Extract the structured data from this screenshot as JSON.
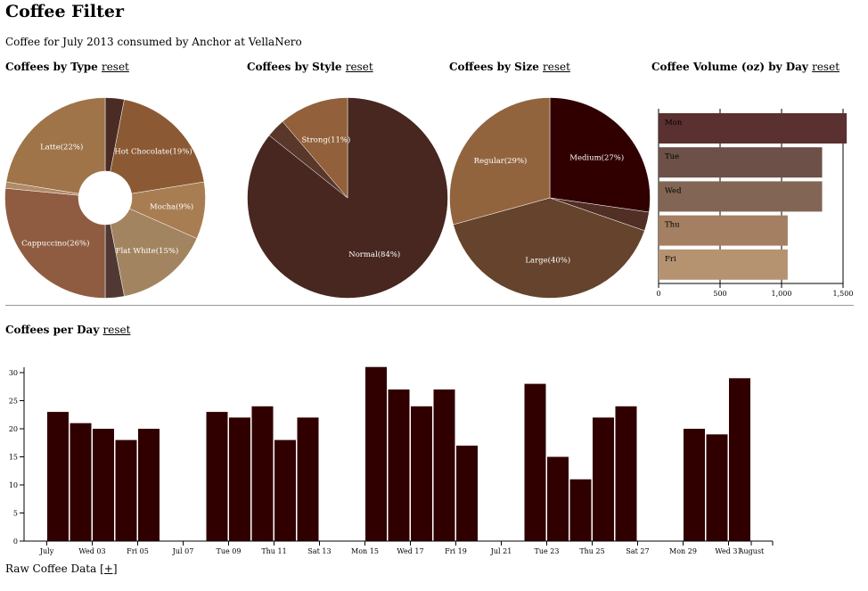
{
  "page": {
    "title": "Coffee Filter",
    "subtitle": "Coffee for July 2013 consumed by Anchor at VellaNero",
    "reset_label": "reset",
    "raw_label": "Raw Coffee Data",
    "raw_toggle": "[+]"
  },
  "chart_data": [
    {
      "id": "type",
      "type": "pie",
      "title": "Coffees by Type",
      "inner_radius": true,
      "slices": [
        {
          "label": "",
          "value": 3,
          "color": "#4a2c25"
        },
        {
          "label": "Hot Chocolate(19%)",
          "value": 19,
          "color": "#8b5a34"
        },
        {
          "label": "Mocha(9%)",
          "value": 9,
          "color": "#a87d52"
        },
        {
          "label": "Flat White(15%)",
          "value": 15,
          "color": "#a38461"
        },
        {
          "label": "",
          "value": 3,
          "color": "#513933"
        },
        {
          "label": "Cappuccino(26%)",
          "value": 26,
          "color": "#8f5c41"
        },
        {
          "label": "",
          "value": 1,
          "color": "#b18a68"
        },
        {
          "label": "Latte(22%)",
          "value": 22,
          "color": "#9e7448"
        }
      ]
    },
    {
      "id": "style",
      "type": "pie",
      "title": "Coffees by Style",
      "inner_radius": false,
      "slices": [
        {
          "label": "Normal(84%)",
          "value": 84,
          "color": "#47271f"
        },
        {
          "label": "",
          "value": 3,
          "color": "#59382b"
        },
        {
          "label": "Strong(11%)",
          "value": 11,
          "color": "#92603a"
        }
      ]
    },
    {
      "id": "size",
      "type": "pie",
      "title": "Coffees by Size",
      "inner_radius": false,
      "slices": [
        {
          "label": "Medium(27%)",
          "value": 27,
          "color": "#300000"
        },
        {
          "label": "",
          "value": 3,
          "color": "#512f25"
        },
        {
          "label": "Large(40%)",
          "value": 40,
          "color": "#65432d"
        },
        {
          "label": "Regular(29%)",
          "value": 29,
          "color": "#92643e"
        }
      ]
    },
    {
      "id": "volume",
      "type": "bar",
      "orientation": "horizontal",
      "title": "Coffee Volume (oz) by Day",
      "categories": [
        "Mon",
        "Tue",
        "Wed",
        "Thu",
        "Fri"
      ],
      "values": [
        1530,
        1330,
        1330,
        1050,
        1050
      ],
      "colors": [
        "#5b3030",
        "#6d5048",
        "#826555",
        "#a47f61",
        "#b59371"
      ],
      "xlim": [
        0,
        1500
      ],
      "ticks": [
        "0",
        "500",
        "1,000",
        "1,500"
      ],
      "tick_values": [
        0,
        500,
        1000,
        1500
      ]
    },
    {
      "id": "perday",
      "type": "bar",
      "title": "Coffees per Day",
      "color": "#300000",
      "days": [
        {
          "day": 1,
          "value": 23
        },
        {
          "day": 2,
          "value": 21
        },
        {
          "day": 3,
          "value": 20
        },
        {
          "day": 4,
          "value": 18
        },
        {
          "day": 5,
          "value": 20
        },
        {
          "day": 8,
          "value": 23
        },
        {
          "day": 9,
          "value": 22
        },
        {
          "day": 10,
          "value": 24
        },
        {
          "day": 11,
          "value": 18
        },
        {
          "day": 12,
          "value": 22
        },
        {
          "day": 15,
          "value": 31
        },
        {
          "day": 16,
          "value": 27
        },
        {
          "day": 17,
          "value": 24
        },
        {
          "day": 18,
          "value": 27
        },
        {
          "day": 19,
          "value": 17
        },
        {
          "day": 22,
          "value": 28
        },
        {
          "day": 23,
          "value": 15
        },
        {
          "day": 24,
          "value": 11
        },
        {
          "day": 25,
          "value": 22
        },
        {
          "day": 26,
          "value": 24
        },
        {
          "day": 29,
          "value": 20
        },
        {
          "day": 30,
          "value": 19
        },
        {
          "day": 31,
          "value": 29
        }
      ],
      "ylim": [
        0,
        30
      ],
      "y_ticks": [
        "0",
        "5",
        "10",
        "15",
        "20",
        "25",
        "30"
      ],
      "x_ticks": [
        {
          "day": 1,
          "label": "July"
        },
        {
          "day": 3,
          "label": "Wed 03"
        },
        {
          "day": 5,
          "label": "Fri 05"
        },
        {
          "day": 7,
          "label": "Jul 07"
        },
        {
          "day": 9,
          "label": "Tue 09"
        },
        {
          "day": 11,
          "label": "Thu 11"
        },
        {
          "day": 13,
          "label": "Sat 13"
        },
        {
          "day": 15,
          "label": "Mon 15"
        },
        {
          "day": 17,
          "label": "Wed 17"
        },
        {
          "day": 19,
          "label": "Fri 19"
        },
        {
          "day": 21,
          "label": "Jul 21"
        },
        {
          "day": 23,
          "label": "Tue 23"
        },
        {
          "day": 25,
          "label": "Thu 25"
        },
        {
          "day": 27,
          "label": "Sat 27"
        },
        {
          "day": 29,
          "label": "Mon 29"
        },
        {
          "day": 31,
          "label": "Wed 31"
        },
        {
          "day": 32,
          "label": "August"
        }
      ]
    }
  ]
}
